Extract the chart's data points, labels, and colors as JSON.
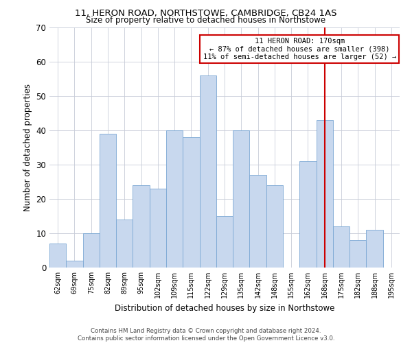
{
  "title": "11, HERON ROAD, NORTHSTOWE, CAMBRIDGE, CB24 1AS",
  "subtitle": "Size of property relative to detached houses in Northstowe",
  "xlabel": "Distribution of detached houses by size in Northstowe",
  "ylabel": "Number of detached properties",
  "bar_labels": [
    "62sqm",
    "69sqm",
    "75sqm",
    "82sqm",
    "89sqm",
    "95sqm",
    "102sqm",
    "109sqm",
    "115sqm",
    "122sqm",
    "129sqm",
    "135sqm",
    "142sqm",
    "148sqm",
    "155sqm",
    "162sqm",
    "168sqm",
    "175sqm",
    "182sqm",
    "188sqm",
    "195sqm"
  ],
  "bar_values": [
    7,
    2,
    10,
    39,
    14,
    24,
    23,
    40,
    38,
    56,
    15,
    40,
    27,
    24,
    0,
    31,
    43,
    12,
    8,
    11,
    0
  ],
  "bar_color": "#c8d8ee",
  "bar_edge_color": "#7ba8d4",
  "highlight_line_index": 16,
  "highlight_color": "#cc0000",
  "annotation_line1": "11 HERON ROAD: 170sqm",
  "annotation_line2": "← 87% of detached houses are smaller (398)",
  "annotation_line3": "11% of semi-detached houses are larger (52) →",
  "annotation_box_color": "#ffffff",
  "annotation_box_edge": "#cc0000",
  "ylim": [
    0,
    70
  ],
  "yticks": [
    0,
    10,
    20,
    30,
    40,
    50,
    60,
    70
  ],
  "footer_line1": "Contains HM Land Registry data © Crown copyright and database right 2024.",
  "footer_line2": "Contains public sector information licensed under the Open Government Licence v3.0.",
  "background_color": "#ffffff",
  "grid_color": "#c8ccd8",
  "title_fontsize": 9.5,
  "subtitle_fontsize": 8.5
}
